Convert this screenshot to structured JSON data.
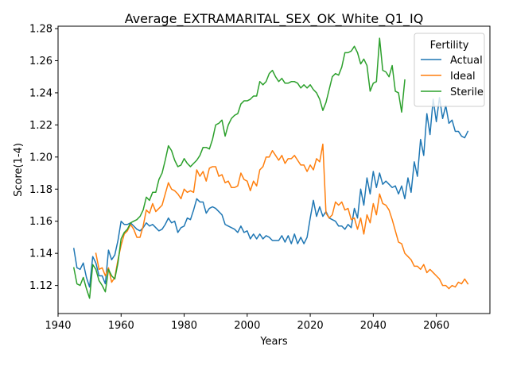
{
  "chart_data": {
    "type": "line",
    "title": "Average_EXTRAMARITAL_SEX_OK_White_Q1_IQ",
    "xlabel": "Years",
    "ylabel": "Score(1-4)",
    "xlim": [
      1940,
      2077
    ],
    "ylim": [
      1.1025,
      1.2815
    ],
    "xticks": [
      1940,
      1960,
      1980,
      2000,
      2020,
      2040,
      2060
    ],
    "yticks": [
      1.12,
      1.14,
      1.16,
      1.18,
      1.2,
      1.22,
      1.24,
      1.26,
      1.28
    ],
    "legend": {
      "title": "Fertility",
      "placement": "top-right"
    },
    "series": [
      {
        "name": "Actual",
        "color": "#1f77b4",
        "x": [
          1945,
          1946,
          1947,
          1948,
          1949,
          1950,
          1951,
          1952,
          1953,
          1954,
          1955,
          1956,
          1957,
          1958,
          1959,
          1960,
          1961,
          1962,
          1963,
          1964,
          1965,
          1966,
          1967,
          1968,
          1969,
          1970,
          1971,
          1972,
          1973,
          1974,
          1975,
          1976,
          1977,
          1978,
          1979,
          1980,
          1981,
          1982,
          1983,
          1984,
          1985,
          1986,
          1987,
          1988,
          1989,
          1990,
          1991,
          1992,
          1993,
          1994,
          1995,
          1996,
          1997,
          1998,
          1999,
          2000,
          2001,
          2002,
          2003,
          2004,
          2005,
          2006,
          2007,
          2008,
          2009,
          2010,
          2011,
          2012,
          2013,
          2014,
          2015,
          2016,
          2017,
          2018,
          2019,
          2020,
          2021,
          2022,
          2023,
          2024,
          2025,
          2026,
          2027,
          2028,
          2029,
          2030,
          2031,
          2032,
          2033,
          2034,
          2035,
          2036,
          2037,
          2038,
          2039,
          2040,
          2041,
          2042,
          2043,
          2044,
          2045,
          2046,
          2047,
          2048,
          2049,
          2050,
          2051,
          2052,
          2053,
          2054,
          2055,
          2056,
          2057,
          2058,
          2059,
          2060,
          2061,
          2062,
          2063,
          2064,
          2065,
          2066,
          2067,
          2068,
          2069,
          2070
        ],
        "values": [
          1.143,
          1.131,
          1.13,
          1.134,
          1.125,
          1.119,
          1.138,
          1.134,
          1.126,
          1.126,
          1.121,
          1.142,
          1.136,
          1.139,
          1.148,
          1.16,
          1.158,
          1.158,
          1.159,
          1.157,
          1.155,
          1.154,
          1.156,
          1.159,
          1.157,
          1.158,
          1.156,
          1.154,
          1.155,
          1.158,
          1.162,
          1.159,
          1.16,
          1.153,
          1.156,
          1.157,
          1.162,
          1.161,
          1.167,
          1.174,
          1.172,
          1.172,
          1.165,
          1.168,
          1.169,
          1.168,
          1.166,
          1.164,
          1.158,
          1.157,
          1.156,
          1.155,
          1.153,
          1.157,
          1.153,
          1.154,
          1.149,
          1.152,
          1.149,
          1.152,
          1.149,
          1.151,
          1.15,
          1.148,
          1.148,
          1.148,
          1.151,
          1.147,
          1.151,
          1.146,
          1.152,
          1.146,
          1.15,
          1.146,
          1.15,
          1.162,
          1.173,
          1.163,
          1.169,
          1.163,
          1.166,
          1.162,
          1.161,
          1.16,
          1.157,
          1.157,
          1.155,
          1.158,
          1.156,
          1.168,
          1.162,
          1.18,
          1.17,
          1.187,
          1.177,
          1.191,
          1.181,
          1.19,
          1.183,
          1.185,
          1.183,
          1.181,
          1.182,
          1.177,
          1.182,
          1.174,
          1.187,
          1.178,
          1.197,
          1.188,
          1.211,
          1.201,
          1.227,
          1.214,
          1.236,
          1.222,
          1.237,
          1.224,
          1.232,
          1.221,
          1.223,
          1.216,
          1.216,
          1.213,
          1.212,
          1.216
        ]
      },
      {
        "name": "Ideal",
        "color": "#ff7f0e",
        "x": [
          1952,
          1953,
          1954,
          1955,
          1956,
          1957,
          1958,
          1959,
          1960,
          1961,
          1962,
          1963,
          1964,
          1965,
          1966,
          1967,
          1968,
          1969,
          1970,
          1971,
          1972,
          1973,
          1974,
          1975,
          1976,
          1977,
          1978,
          1979,
          1980,
          1981,
          1982,
          1983,
          1984,
          1985,
          1986,
          1987,
          1988,
          1989,
          1990,
          1991,
          1992,
          1993,
          1994,
          1995,
          1996,
          1997,
          1998,
          1999,
          2000,
          2001,
          2002,
          2003,
          2004,
          2005,
          2006,
          2007,
          2008,
          2009,
          2010,
          2011,
          2012,
          2013,
          2014,
          2015,
          2016,
          2017,
          2018,
          2019,
          2020,
          2021,
          2022,
          2023,
          2024,
          2025,
          2026,
          2027,
          2028,
          2029,
          2030,
          2031,
          2032,
          2033,
          2034,
          2035,
          2036,
          2037,
          2038,
          2039,
          2040,
          2041,
          2042,
          2043,
          2044,
          2045,
          2046,
          2047,
          2048,
          2049,
          2050,
          2051,
          2052,
          2053,
          2054,
          2055,
          2056,
          2057,
          2058,
          2059,
          2060,
          2061,
          2062,
          2063,
          2064,
          2065,
          2066,
          2067,
          2068,
          2069,
          2070
        ],
        "values": [
          1.14,
          1.13,
          1.131,
          1.126,
          1.131,
          1.122,
          1.125,
          1.136,
          1.145,
          1.152,
          1.154,
          1.158,
          1.155,
          1.15,
          1.15,
          1.157,
          1.167,
          1.165,
          1.171,
          1.166,
          1.168,
          1.17,
          1.177,
          1.184,
          1.18,
          1.179,
          1.177,
          1.174,
          1.18,
          1.178,
          1.179,
          1.178,
          1.192,
          1.188,
          1.191,
          1.185,
          1.193,
          1.194,
          1.194,
          1.188,
          1.189,
          1.184,
          1.185,
          1.181,
          1.181,
          1.182,
          1.19,
          1.186,
          1.185,
          1.179,
          1.185,
          1.182,
          1.192,
          1.194,
          1.2,
          1.2,
          1.204,
          1.201,
          1.198,
          1.201,
          1.196,
          1.199,
          1.199,
          1.201,
          1.198,
          1.195,
          1.195,
          1.191,
          1.195,
          1.192,
          1.199,
          1.197,
          1.208,
          1.165,
          1.162,
          1.164,
          1.172,
          1.17,
          1.172,
          1.167,
          1.168,
          1.161,
          1.162,
          1.155,
          1.162,
          1.152,
          1.164,
          1.159,
          1.171,
          1.164,
          1.177,
          1.171,
          1.17,
          1.167,
          1.161,
          1.154,
          1.147,
          1.146,
          1.14,
          1.138,
          1.136,
          1.132,
          1.132,
          1.13,
          1.133,
          1.128,
          1.13,
          1.128,
          1.126,
          1.124,
          1.12,
          1.12,
          1.118,
          1.12,
          1.119,
          1.122,
          1.121,
          1.124,
          1.121
        ]
      },
      {
        "name": "Sterile",
        "color": "#2ca02c",
        "x": [
          1945,
          1946,
          1947,
          1948,
          1949,
          1950,
          1951,
          1952,
          1953,
          1954,
          1955,
          1956,
          1957,
          1958,
          1959,
          1960,
          1961,
          1962,
          1963,
          1964,
          1965,
          1966,
          1967,
          1968,
          1969,
          1970,
          1971,
          1972,
          1973,
          1974,
          1975,
          1976,
          1977,
          1978,
          1979,
          1980,
          1981,
          1982,
          1983,
          1984,
          1985,
          1986,
          1987,
          1988,
          1989,
          1990,
          1991,
          1992,
          1993,
          1994,
          1995,
          1996,
          1997,
          1998,
          1999,
          2000,
          2001,
          2002,
          2003,
          2004,
          2005,
          2006,
          2007,
          2008,
          2009,
          2010,
          2011,
          2012,
          2013,
          2014,
          2015,
          2016,
          2017,
          2018,
          2019,
          2020,
          2021,
          2022,
          2023,
          2024,
          2025,
          2026,
          2027,
          2028,
          2029,
          2030,
          2031,
          2032,
          2033,
          2034,
          2035,
          2036,
          2037,
          2038,
          2039,
          2040,
          2041,
          2042,
          2043,
          2044,
          2045,
          2046,
          2047,
          2048,
          2049,
          2050
        ],
        "values": [
          1.131,
          1.121,
          1.12,
          1.125,
          1.118,
          1.112,
          1.133,
          1.13,
          1.123,
          1.12,
          1.116,
          1.13,
          1.126,
          1.124,
          1.134,
          1.149,
          1.153,
          1.155,
          1.159,
          1.16,
          1.161,
          1.163,
          1.167,
          1.175,
          1.173,
          1.178,
          1.178,
          1.186,
          1.19,
          1.198,
          1.207,
          1.204,
          1.198,
          1.194,
          1.195,
          1.199,
          1.196,
          1.194,
          1.196,
          1.198,
          1.201,
          1.206,
          1.206,
          1.205,
          1.211,
          1.22,
          1.221,
          1.223,
          1.213,
          1.22,
          1.224,
          1.226,
          1.227,
          1.233,
          1.235,
          1.235,
          1.236,
          1.238,
          1.238,
          1.247,
          1.245,
          1.247,
          1.252,
          1.254,
          1.25,
          1.247,
          1.249,
          1.246,
          1.246,
          1.247,
          1.247,
          1.246,
          1.243,
          1.245,
          1.243,
          1.245,
          1.242,
          1.24,
          1.236,
          1.229,
          1.234,
          1.242,
          1.25,
          1.252,
          1.251,
          1.256,
          1.265,
          1.265,
          1.266,
          1.269,
          1.265,
          1.258,
          1.261,
          1.257,
          1.241,
          1.246,
          1.247,
          1.274,
          1.254,
          1.253,
          1.25,
          1.257,
          1.241,
          1.24,
          1.228,
          1.248
        ]
      }
    ]
  }
}
